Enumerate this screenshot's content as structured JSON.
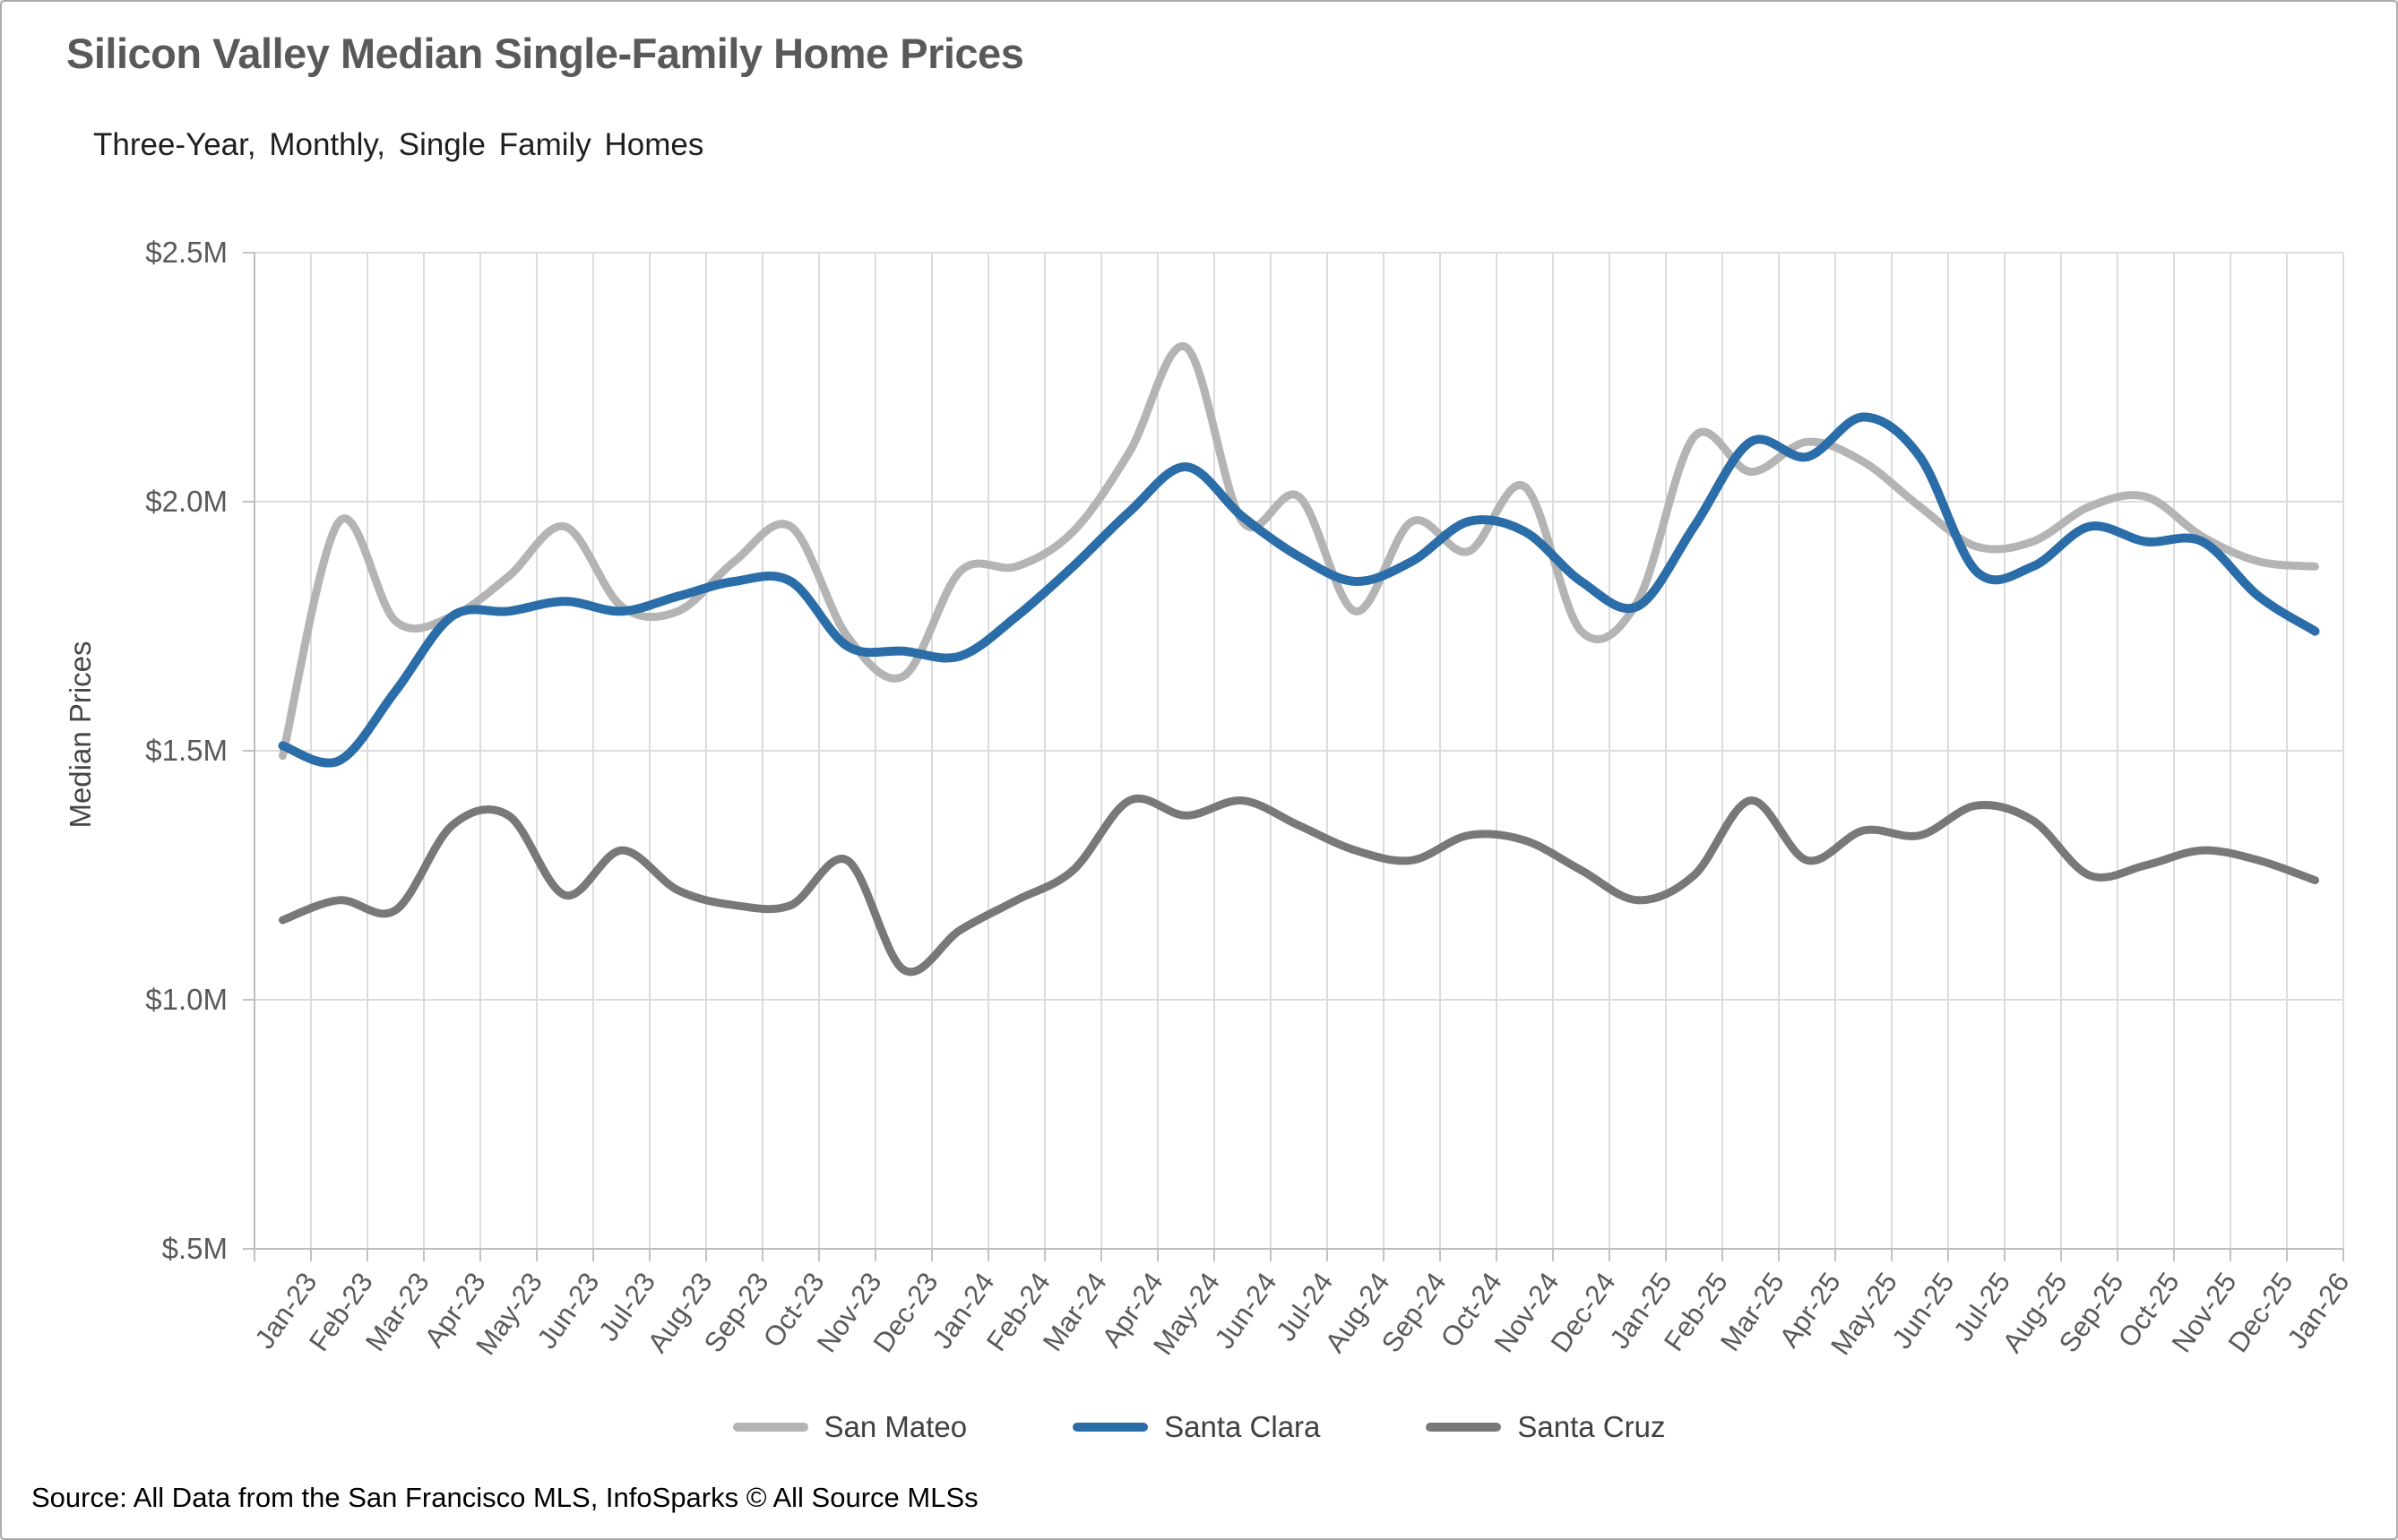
{
  "header": {
    "title": "Silicon Valley Median Single-Family Home Prices",
    "subtitle": "Three-Year, Monthly, Single Family Homes"
  },
  "footer": {
    "source": "Source: All Data from the San Francisco MLS, InfoSparks © All Source MLSs"
  },
  "chart_data": {
    "type": "line",
    "title": "Silicon Valley Median Single-Family Home Prices",
    "subtitle": "Three-Year, Monthly, Single Family Homes",
    "xlabel": "",
    "ylabel": "Median Prices",
    "ylim": [
      0.5,
      2.5
    ],
    "grid": true,
    "legend_position": "bottom",
    "yticks": [
      {
        "label": "$2.5M",
        "value": 2.5
      },
      {
        "label": "$2.0M",
        "value": 2.0
      },
      {
        "label": "$1.5M",
        "value": 1.5
      },
      {
        "label": "$1.0M",
        "value": 1.0
      },
      {
        "label": "$.5M",
        "value": 0.5
      }
    ],
    "categories": [
      "Jan-23",
      "Feb-23",
      "Mar-23",
      "Apr-23",
      "May-23",
      "Jun-23",
      "Jul-23",
      "Aug-23",
      "Sep-23",
      "Oct-23",
      "Nov-23",
      "Dec-23",
      "Jan-24",
      "Feb-24",
      "Mar-24",
      "Apr-24",
      "May-24",
      "Jun-24",
      "Jul-24",
      "Aug-24",
      "Sep-24",
      "Oct-24",
      "Nov-24",
      "Dec-24",
      "Jan-25",
      "Feb-25",
      "Mar-25",
      "Apr-25",
      "May-25",
      "Jun-25",
      "Jul-25",
      "Aug-25",
      "Sep-25",
      "Oct-25",
      "Nov-25",
      "Dec-25",
      "Jan-26"
    ],
    "series": [
      {
        "name": "San Mateo",
        "color": "#b4b4b4",
        "values": [
          1.49,
          1.96,
          1.76,
          1.77,
          1.85,
          1.95,
          1.79,
          1.78,
          1.88,
          1.95,
          1.73,
          1.65,
          1.86,
          1.87,
          1.94,
          2.1,
          2.31,
          1.96,
          2.01,
          1.78,
          1.96,
          1.9,
          2.03,
          1.74,
          1.8,
          2.13,
          2.06,
          2.12,
          2.08,
          1.99,
          1.91,
          1.92,
          1.99,
          2.01,
          1.93,
          1.88,
          1.87
        ]
      },
      {
        "name": "Santa Clara",
        "color": "#2a6da8",
        "values": [
          1.51,
          1.48,
          1.62,
          1.77,
          1.78,
          1.8,
          1.78,
          1.81,
          1.84,
          1.84,
          1.71,
          1.7,
          1.69,
          1.77,
          1.87,
          1.98,
          2.07,
          1.97,
          1.89,
          1.84,
          1.88,
          1.96,
          1.94,
          1.84,
          1.79,
          1.95,
          2.12,
          2.09,
          2.17,
          2.09,
          1.86,
          1.87,
          1.95,
          1.92,
          1.92,
          1.81,
          1.74
        ]
      },
      {
        "name": "Santa Cruz",
        "color": "#787878",
        "values": [
          1.16,
          1.2,
          1.18,
          1.35,
          1.37,
          1.21,
          1.3,
          1.22,
          1.19,
          1.19,
          1.28,
          1.06,
          1.14,
          1.2,
          1.26,
          1.4,
          1.37,
          1.4,
          1.35,
          1.3,
          1.28,
          1.33,
          1.32,
          1.26,
          1.2,
          1.25,
          1.4,
          1.28,
          1.34,
          1.33,
          1.39,
          1.36,
          1.25,
          1.27,
          1.3,
          1.28,
          1.24
        ]
      }
    ]
  }
}
